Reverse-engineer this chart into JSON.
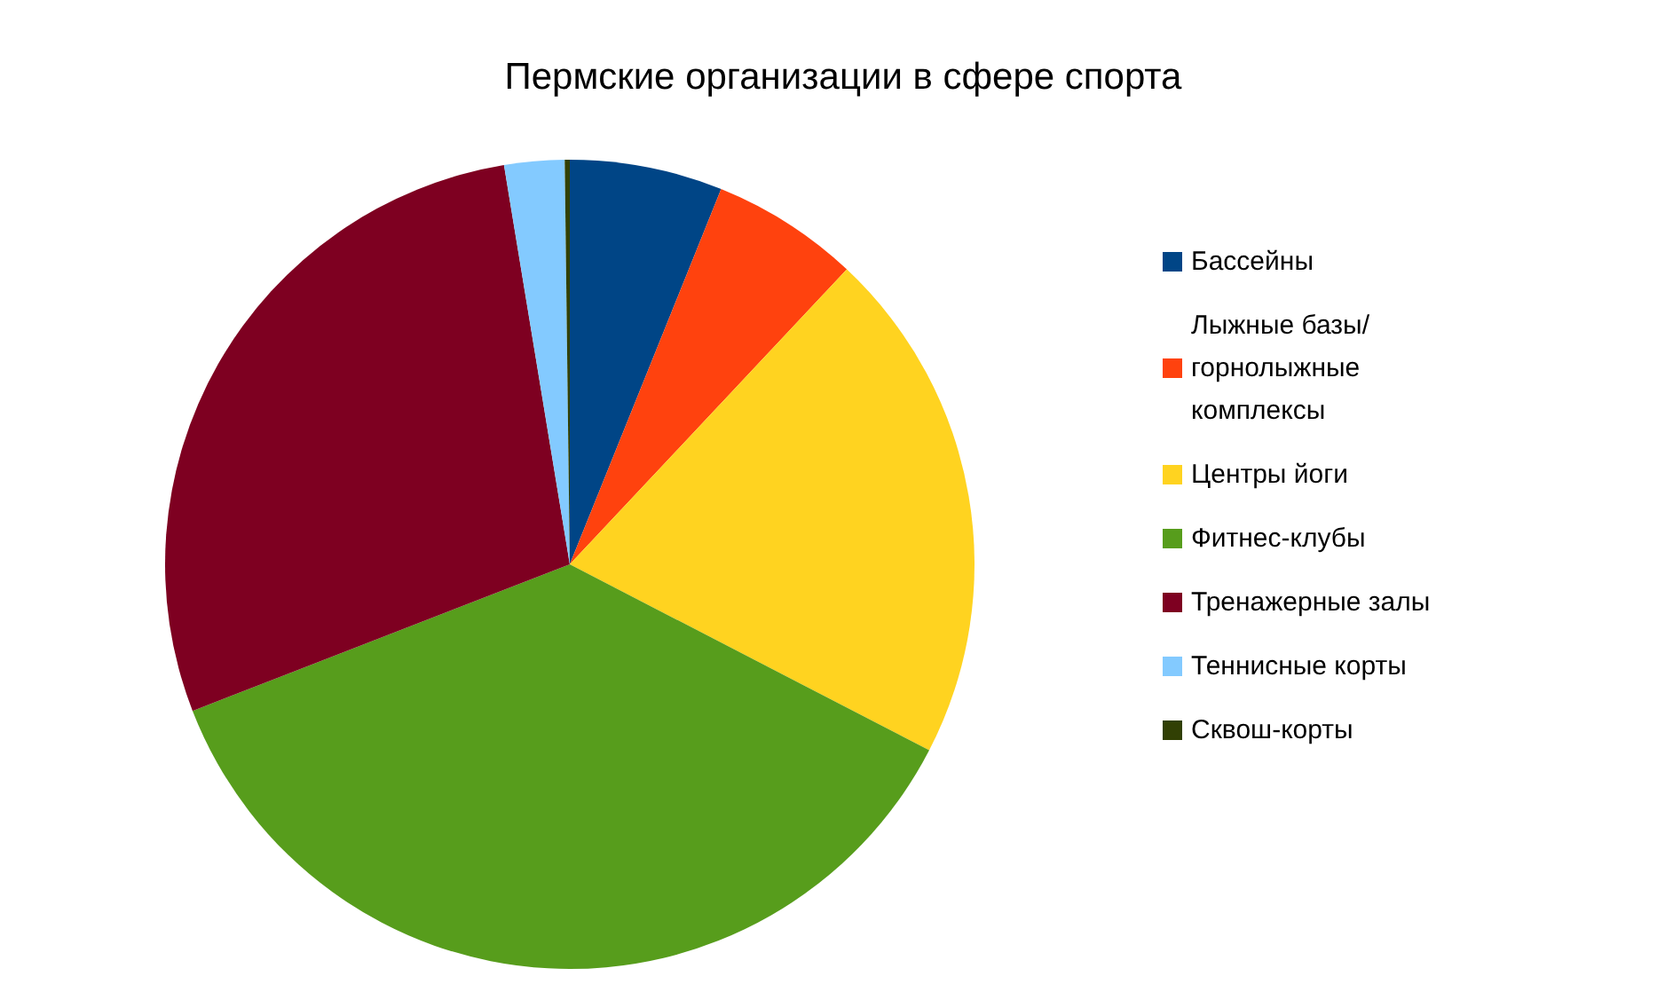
{
  "chart_data": {
    "type": "pie",
    "title": "Пермские организации в сфере спорта",
    "categories": [
      "Бассейны",
      "Лыжные базы/ горнолыжные комплексы",
      "Центры йоги",
      "Фитнес-клубы",
      "Тренажерные залы",
      "Теннисные корты",
      "Сквош-корты"
    ],
    "values": [
      6.1,
      5.9,
      20.6,
      36.5,
      28.3,
      2.4,
      0.2
    ],
    "colors": [
      "#004586",
      "#ff420e",
      "#ffd320",
      "#579d1c",
      "#7e0021",
      "#83caff",
      "#314004"
    ],
    "legend": "right"
  }
}
